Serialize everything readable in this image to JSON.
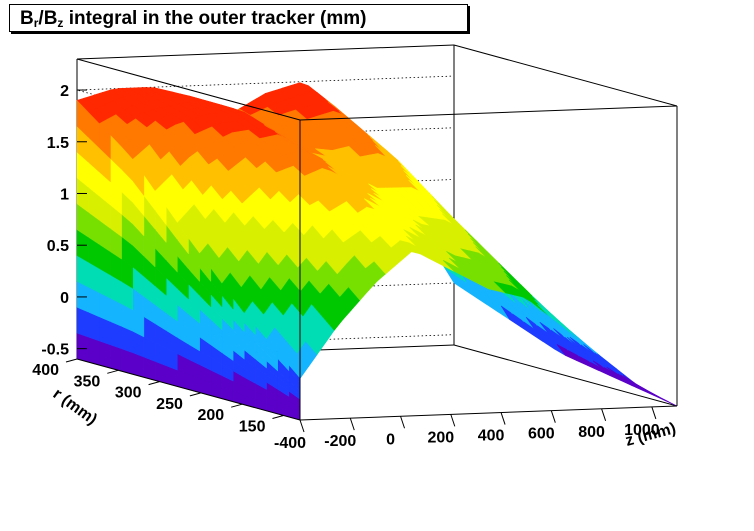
{
  "chart_data": {
    "type": "surface",
    "title_parts": {
      "b1": "B",
      "s1": "r",
      "slash": "/",
      "b2": "B",
      "s2": "z",
      "rest": " integral in the outer tracker (mm)"
    },
    "title": "Br/Bz integral in the outer tracker (mm)",
    "xlabel": "z (mm)",
    "ylabel": "r (mm)",
    "xlim": [
      -400,
      1100
    ],
    "ylim": [
      130,
      400
    ],
    "zlim": [
      -0.6,
      2.3
    ],
    "x_ticks": [
      -400,
      -200,
      0,
      200,
      400,
      600,
      800,
      1000
    ],
    "y_ticks": [
      150,
      200,
      250,
      300,
      350,
      400
    ],
    "z_ticks": [
      -0.5,
      0,
      0.5,
      1,
      1.5,
      2
    ],
    "x_tick_labels": [
      "-400",
      "-200",
      "0",
      "200",
      "400",
      "600",
      "800",
      "1000"
    ],
    "y_tick_labels": [
      "150",
      "200",
      "250",
      "300",
      "350",
      "400"
    ],
    "z_tick_labels": [
      "-0.5",
      "0",
      "0.5",
      "1",
      "1.5",
      "2"
    ],
    "grid": true,
    "colormap": [
      "#5a00c8",
      "#1e3cff",
      "#14b4ff",
      "#00dcb4",
      "#00c800",
      "#78e000",
      "#d8f000",
      "#ffff00",
      "#ffc000",
      "#ff7800",
      "#ff2800"
    ],
    "z_grid_x": [
      -400,
      -250,
      -100,
      50,
      200,
      350,
      500,
      650,
      800,
      950,
      1100
    ],
    "z_grid_r": [
      130,
      200,
      270,
      335,
      400
    ],
    "z_values": [
      [
        -0.2,
        0.3,
        0.7,
        1.0,
        0.8,
        0.6,
        0.5,
        0.2,
        -0.1,
        -0.4,
        -0.6
      ],
      [
        0.3,
        0.8,
        1.2,
        1.4,
        1.2,
        1.0,
        0.9,
        0.6,
        0.2,
        -0.2,
        -0.5
      ],
      [
        0.9,
        1.3,
        1.6,
        1.7,
        1.5,
        1.3,
        1.3,
        1.0,
        0.6,
        0.1,
        -0.4
      ],
      [
        1.5,
        1.8,
        1.9,
        1.9,
        1.6,
        1.6,
        1.7,
        1.4,
        1.0,
        0.4,
        -0.2
      ],
      [
        1.9,
        2.0,
        2.0,
        1.9,
        1.7,
        1.9,
        2.0,
        1.7,
        1.2,
        0.6,
        0.0
      ]
    ]
  }
}
